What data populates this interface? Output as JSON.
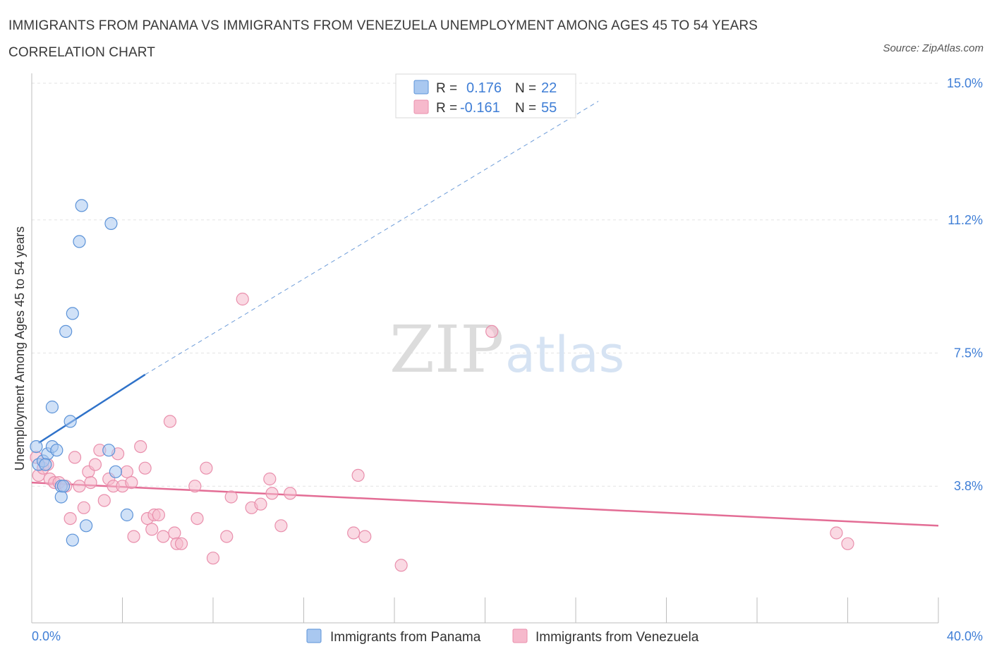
{
  "title": "IMMIGRANTS FROM PANAMA VS IMMIGRANTS FROM VENEZUELA UNEMPLOYMENT AMONG AGES 45 TO 54 YEARS CORRELATION CHART",
  "source": "Source: ZipAtlas.com",
  "watermark": {
    "zip": "ZIP",
    "atlas": "atlas"
  },
  "colors": {
    "panama": "#a9c8f0",
    "panama_edge": "#5c93d8",
    "panama_line": "#2f72c9",
    "venezuela": "#f6b9cc",
    "venezuela_edge": "#e98fac",
    "venezuela_line": "#e36d95",
    "accent": "#3f7ed6"
  },
  "legend": {
    "rows": [
      {
        "r_label": "R =",
        "r_value": "0.176",
        "n_label": "N =",
        "n_value": "22"
      },
      {
        "r_label": "R =",
        "r_value": "-0.161",
        "n_label": "N =",
        "n_value": "55"
      }
    ]
  },
  "chart_data": {
    "type": "scatter",
    "xlabel": "",
    "ylabel": "Unemployment Among Ages 45 to 54 years",
    "xlim": [
      0,
      40
    ],
    "ylim": [
      0,
      15
    ],
    "x_tick_labels": [
      "0.0%",
      "40.0%"
    ],
    "y_ticks": [
      3.8,
      7.5,
      11.2,
      15.0
    ],
    "y_tick_labels": [
      "3.8%",
      "7.5%",
      "11.2%",
      "15.0%"
    ],
    "grid": true,
    "legend_position": "top-center",
    "series": [
      {
        "name": "Immigrants from Panama",
        "r": 0.176,
        "n": 22,
        "points": [
          [
            0.2,
            4.9
          ],
          [
            0.3,
            4.4
          ],
          [
            0.5,
            4.5
          ],
          [
            0.7,
            4.7
          ],
          [
            0.9,
            4.9
          ],
          [
            1.1,
            4.8
          ],
          [
            0.9,
            6.0
          ],
          [
            1.3,
            3.8
          ],
          [
            1.3,
            3.5
          ],
          [
            1.7,
            5.6
          ],
          [
            1.5,
            8.1
          ],
          [
            1.8,
            8.6
          ],
          [
            2.1,
            10.6
          ],
          [
            2.2,
            11.6
          ],
          [
            3.5,
            11.1
          ],
          [
            1.8,
            2.3
          ],
          [
            2.4,
            2.7
          ],
          [
            3.4,
            4.8
          ],
          [
            3.7,
            4.2
          ],
          [
            4.2,
            3.0
          ],
          [
            0.6,
            4.4
          ],
          [
            1.4,
            3.8
          ]
        ],
        "trend": {
          "x": [
            0.3,
            5.0
          ],
          "y": [
            5.0,
            6.9
          ],
          "extended_to": [
            25.0,
            14.5
          ]
        }
      },
      {
        "name": "Immigrants from Venezuela",
        "r": -0.161,
        "n": 55,
        "points": [
          [
            0.2,
            4.6
          ],
          [
            0.3,
            4.1
          ],
          [
            0.5,
            4.3
          ],
          [
            0.7,
            4.4
          ],
          [
            0.8,
            4.0
          ],
          [
            1.0,
            3.9
          ],
          [
            1.2,
            3.9
          ],
          [
            1.5,
            3.8
          ],
          [
            1.7,
            2.9
          ],
          [
            1.9,
            4.6
          ],
          [
            2.1,
            3.8
          ],
          [
            2.3,
            3.2
          ],
          [
            2.5,
            4.2
          ],
          [
            2.6,
            3.9
          ],
          [
            2.8,
            4.4
          ],
          [
            3.0,
            4.8
          ],
          [
            3.2,
            3.4
          ],
          [
            3.4,
            4.0
          ],
          [
            3.6,
            3.8
          ],
          [
            3.8,
            4.7
          ],
          [
            4.0,
            3.8
          ],
          [
            4.2,
            4.2
          ],
          [
            4.4,
            3.9
          ],
          [
            4.5,
            2.4
          ],
          [
            4.8,
            4.9
          ],
          [
            5.0,
            4.3
          ],
          [
            5.1,
            2.9
          ],
          [
            5.3,
            2.6
          ],
          [
            5.4,
            3.0
          ],
          [
            5.6,
            3.0
          ],
          [
            5.8,
            2.4
          ],
          [
            6.1,
            5.6
          ],
          [
            6.3,
            2.5
          ],
          [
            6.4,
            2.2
          ],
          [
            6.6,
            2.2
          ],
          [
            7.2,
            3.8
          ],
          [
            7.3,
            2.9
          ],
          [
            7.7,
            4.3
          ],
          [
            8.0,
            1.8
          ],
          [
            8.6,
            2.4
          ],
          [
            8.8,
            3.5
          ],
          [
            9.3,
            9.0
          ],
          [
            9.7,
            3.2
          ],
          [
            10.1,
            3.3
          ],
          [
            10.5,
            4.0
          ],
          [
            10.6,
            3.6
          ],
          [
            11.0,
            2.7
          ],
          [
            11.4,
            3.6
          ],
          [
            14.2,
            2.5
          ],
          [
            14.4,
            4.1
          ],
          [
            14.7,
            2.4
          ],
          [
            16.3,
            1.6
          ],
          [
            20.3,
            8.1
          ],
          [
            35.5,
            2.5
          ],
          [
            36.0,
            2.2
          ]
        ],
        "trend": {
          "x": [
            0.0,
            40.0
          ],
          "y": [
            3.9,
            2.7
          ]
        }
      }
    ]
  }
}
